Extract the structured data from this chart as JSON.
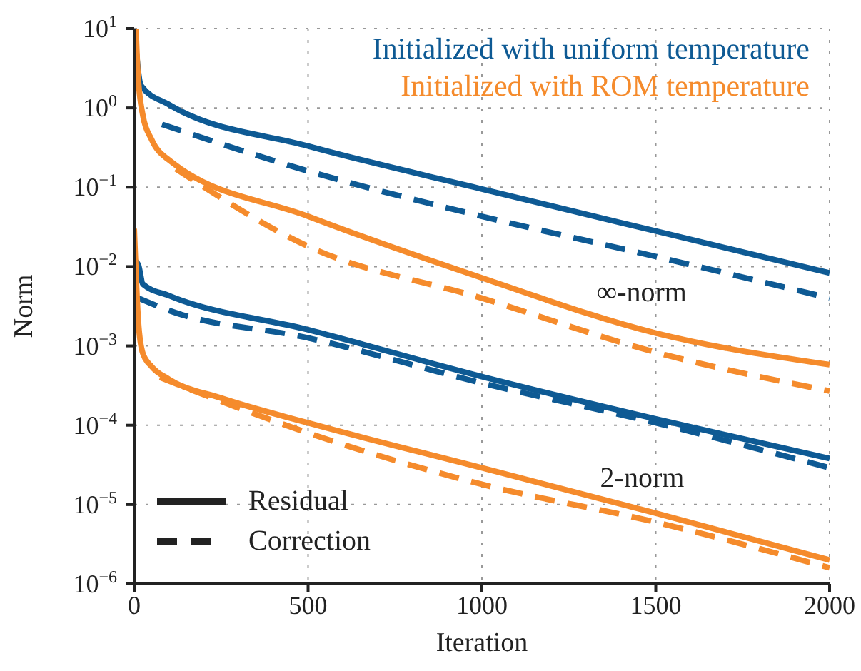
{
  "chart_data": {
    "type": "line",
    "xlabel": "Iteration",
    "ylabel": "Norm",
    "log": "y",
    "grid": true,
    "marker": "none",
    "xlim": [
      0,
      2000
    ],
    "xticks": [
      0,
      500,
      1000,
      1500,
      2000
    ],
    "ylim": [
      1e-06,
      10
    ],
    "yticks": [
      {
        "value": 1e-06,
        "label": "10$^{−6}$"
      },
      {
        "value": 1e-05,
        "label": "10$^{−5}$"
      },
      {
        "value": 0.0001,
        "label": "10$^{−4}$"
      },
      {
        "value": 0.001,
        "label": "10$^{−3}$"
      },
      {
        "value": 0.01,
        "label": "10$^{−2}$"
      },
      {
        "value": 0.1,
        "label": "10$^{−1}$"
      },
      {
        "value": 1,
        "label": "10$^{0}$"
      },
      {
        "value": 10,
        "label": "10$^{1}$"
      }
    ],
    "annotations": [
      "Initialized with uniform temperature",
      "Initialized with ROM temperature",
      "∞-norm",
      "2-norm",
      "Residual",
      "Correction"
    ],
    "series": [
      {
        "color": "#0e5a94",
        "line_style": "solid",
        "x": [
          0,
          20,
          100,
          500,
          1000,
          1500,
          2000
        ],
        "values": [
          10,
          1.9,
          1.1,
          0.33,
          0.095,
          0.028,
          0.0083
        ]
      },
      {
        "color": "#0e5a94",
        "line_style": "dashed",
        "x": [
          80,
          500,
          1000,
          1500,
          2000
        ],
        "values": [
          0.62,
          0.16,
          0.043,
          0.0134,
          0.004
        ]
      },
      {
        "color": "#f58b2c",
        "line_style": "solid",
        "x": [
          5,
          10,
          25,
          50,
          100,
          500,
          1000,
          1500,
          2000
        ],
        "values": [
          10,
          3,
          0.8,
          0.4,
          0.22,
          0.043,
          0.0072,
          0.00145,
          0.00058
        ]
      },
      {
        "color": "#f58b2c",
        "line_style": "dashed",
        "x": [
          120,
          500,
          1000,
          1500,
          2000
        ],
        "values": [
          0.17,
          0.018,
          0.004,
          0.00083,
          0.00027
        ]
      },
      {
        "color": "#0e5a94",
        "line_style": "solid",
        "x": [
          0,
          12,
          25,
          100,
          500,
          1000,
          1500,
          2000
        ],
        "values": [
          0.012,
          0.0105,
          0.006,
          0.0043,
          0.0016,
          0.00041,
          0.00012,
          3.8e-05
        ]
      },
      {
        "color": "#0e5a94",
        "line_style": "dashed",
        "x": [
          12,
          100,
          500,
          1000,
          1500,
          2000
        ],
        "values": [
          0.004,
          0.0028,
          0.00126,
          0.00034,
          0.000107,
          2.9e-05
        ]
      },
      {
        "color": "#f58b2c",
        "line_style": "solid",
        "x": [
          0,
          12,
          25,
          50,
          100,
          250,
          500,
          1000,
          1500,
          2000
        ],
        "values": [
          0.03,
          0.002,
          0.0008,
          0.00055,
          0.00038,
          0.00022,
          0.000107,
          2.9e-05,
          7.8e-06,
          2e-06
        ]
      },
      {
        "color": "#f58b2c",
        "line_style": "dashed",
        "x": [
          74,
          250,
          500,
          1000,
          1500,
          2000
        ],
        "values": [
          0.0004,
          0.0002,
          8e-05,
          1.8e-05,
          6e-06,
          1.6e-06
        ]
      }
    ]
  }
}
